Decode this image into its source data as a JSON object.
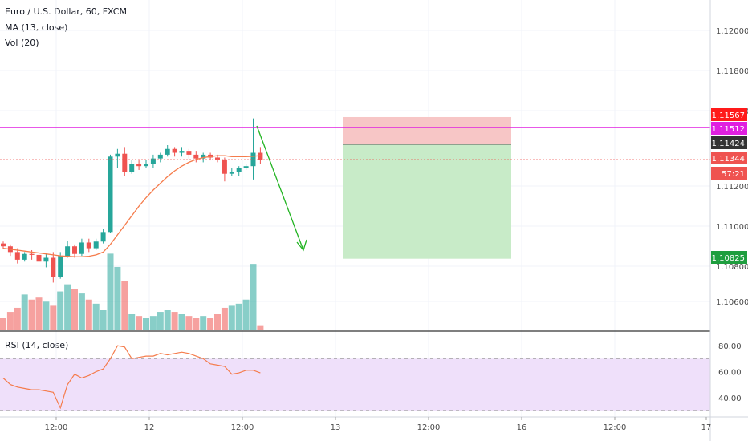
{
  "legend": {
    "symbol": "Euro / U.S. Dollar, 60, FXCM",
    "ma": "MA (13, close)",
    "vol": "Vol (20)",
    "rsi": "RSI (14, close)"
  },
  "price_axis": {
    "ticks": [
      "1.12000",
      "1.11800",
      "1.11600",
      "1.11200",
      "1.11000",
      "1.10800",
      "1.10600"
    ],
    "tags": [
      {
        "label": "1.11567",
        "color": "#ff1a1a"
      },
      {
        "label": "1.11512",
        "color": "#e020e0"
      },
      {
        "label": "1.11424",
        "color": "#333333"
      },
      {
        "label": "1.11344",
        "color": "#ef5350"
      },
      {
        "label": "57:21",
        "color": "#ef5350"
      },
      {
        "label": "1.10825",
        "color": "#1e9e3e"
      }
    ]
  },
  "rsi_axis": {
    "ticks": [
      "80.00",
      "60.00",
      "40.00"
    ]
  },
  "time_axis": {
    "ticks": [
      "12:00",
      "12",
      "12:00",
      "13",
      "12:00",
      "16",
      "12:00",
      "17"
    ]
  },
  "colors": {
    "up": "#26a69a",
    "down": "#ef5350",
    "ma": "#f57c4c",
    "resistance": "#e020e0",
    "stop_zone": "#f7c6c6",
    "target_zone": "#c8ebc8",
    "arrow": "#22b422",
    "rsi_line": "#f57c4c",
    "rsi_band": "#efe0fa"
  },
  "chart_data": {
    "type": "candlestick",
    "title": "Euro / U.S. Dollar, 60, FXCM",
    "candles": [
      {
        "o": 1.10905,
        "h": 1.10915,
        "l": 1.10875,
        "c": 1.1089
      },
      {
        "o": 1.1089,
        "h": 1.109,
        "l": 1.1084,
        "c": 1.1086
      },
      {
        "o": 1.1086,
        "h": 1.1088,
        "l": 1.108,
        "c": 1.1082
      },
      {
        "o": 1.1082,
        "h": 1.1086,
        "l": 1.1081,
        "c": 1.1085
      },
      {
        "o": 1.1085,
        "h": 1.1087,
        "l": 1.1082,
        "c": 1.10845
      },
      {
        "o": 1.10845,
        "h": 1.1086,
        "l": 1.1079,
        "c": 1.1081
      },
      {
        "o": 1.1081,
        "h": 1.1085,
        "l": 1.1078,
        "c": 1.1083
      },
      {
        "o": 1.1083,
        "h": 1.1086,
        "l": 1.107,
        "c": 1.1073
      },
      {
        "o": 1.1073,
        "h": 1.1086,
        "l": 1.1072,
        "c": 1.1084
      },
      {
        "o": 1.1084,
        "h": 1.1092,
        "l": 1.1083,
        "c": 1.1089
      },
      {
        "o": 1.1089,
        "h": 1.109,
        "l": 1.1083,
        "c": 1.1085
      },
      {
        "o": 1.1085,
        "h": 1.1093,
        "l": 1.1084,
        "c": 1.1091
      },
      {
        "o": 1.1091,
        "h": 1.1093,
        "l": 1.1086,
        "c": 1.1088
      },
      {
        "o": 1.1088,
        "h": 1.1093,
        "l": 1.1087,
        "c": 1.10915
      },
      {
        "o": 1.10915,
        "h": 1.1098,
        "l": 1.10905,
        "c": 1.10965
      },
      {
        "o": 1.10965,
        "h": 1.1137,
        "l": 1.1096,
        "c": 1.1136
      },
      {
        "o": 1.1136,
        "h": 1.114,
        "l": 1.113,
        "c": 1.11375
      },
      {
        "o": 1.11375,
        "h": 1.1141,
        "l": 1.1126,
        "c": 1.1128
      },
      {
        "o": 1.1128,
        "h": 1.1134,
        "l": 1.1127,
        "c": 1.1132
      },
      {
        "o": 1.1132,
        "h": 1.1134,
        "l": 1.1129,
        "c": 1.1131
      },
      {
        "o": 1.1131,
        "h": 1.1134,
        "l": 1.113,
        "c": 1.1132
      },
      {
        "o": 1.1132,
        "h": 1.1137,
        "l": 1.113,
        "c": 1.1135
      },
      {
        "o": 1.1135,
        "h": 1.1138,
        "l": 1.1133,
        "c": 1.1137
      },
      {
        "o": 1.1137,
        "h": 1.1142,
        "l": 1.1136,
        "c": 1.114
      },
      {
        "o": 1.114,
        "h": 1.1141,
        "l": 1.1136,
        "c": 1.1138
      },
      {
        "o": 1.1138,
        "h": 1.1141,
        "l": 1.1136,
        "c": 1.1139
      },
      {
        "o": 1.1139,
        "h": 1.114,
        "l": 1.1135,
        "c": 1.1137
      },
      {
        "o": 1.1137,
        "h": 1.1139,
        "l": 1.1133,
        "c": 1.1135
      },
      {
        "o": 1.1135,
        "h": 1.1138,
        "l": 1.1133,
        "c": 1.1137
      },
      {
        "o": 1.1137,
        "h": 1.1138,
        "l": 1.1134,
        "c": 1.11355
      },
      {
        "o": 1.11355,
        "h": 1.1137,
        "l": 1.1133,
        "c": 1.11345
      },
      {
        "o": 1.11345,
        "h": 1.11355,
        "l": 1.1123,
        "c": 1.1127
      },
      {
        "o": 1.1127,
        "h": 1.113,
        "l": 1.1126,
        "c": 1.1128
      },
      {
        "o": 1.1128,
        "h": 1.1131,
        "l": 1.1126,
        "c": 1.113
      },
      {
        "o": 1.113,
        "h": 1.1132,
        "l": 1.1129,
        "c": 1.1131
      },
      {
        "o": 1.1131,
        "h": 1.1156,
        "l": 1.1124,
        "c": 1.1138
      },
      {
        "o": 1.1138,
        "h": 1.1141,
        "l": 1.1132,
        "c": 1.11344
      }
    ],
    "ma": [
      1.1088,
      1.10875,
      1.1087,
      1.10865,
      1.1086,
      1.10855,
      1.1085,
      1.10845,
      1.1084,
      1.10838,
      1.10836,
      1.10835,
      1.10838,
      1.10845,
      1.1086,
      1.109,
      1.1095,
      1.11,
      1.1105,
      1.111,
      1.11145,
      1.11185,
      1.1122,
      1.11255,
      1.11285,
      1.1131,
      1.1133,
      1.11345,
      1.11355,
      1.1136,
      1.11365,
      1.11365,
      1.1136,
      1.1136,
      1.1136,
      1.11362,
      1.11365
    ],
    "volume": [
      12,
      18,
      22,
      35,
      30,
      32,
      28,
      24,
      38,
      45,
      40,
      36,
      30,
      26,
      20,
      75,
      62,
      48,
      16,
      14,
      12,
      14,
      18,
      20,
      18,
      16,
      14,
      12,
      14,
      12,
      16,
      22,
      24,
      26,
      30,
      65,
      5
    ],
    "rsi": [
      55,
      50,
      48,
      47,
      46,
      46,
      45,
      44,
      32,
      50,
      58,
      55,
      57,
      60,
      62,
      70,
      80,
      79,
      70,
      71,
      72,
      72,
      74,
      73,
      74,
      75,
      74,
      72,
      70,
      66,
      65,
      64,
      58,
      59,
      61,
      61,
      59
    ],
    "ylim": [
      1.1045,
      1.1218
    ],
    "rsi_ylim": [
      25,
      90
    ],
    "zones": {
      "entry": 1.11424,
      "stop": 1.11567,
      "target": 1.10825
    },
    "resistance": 1.11512,
    "last_price": 1.11344
  }
}
